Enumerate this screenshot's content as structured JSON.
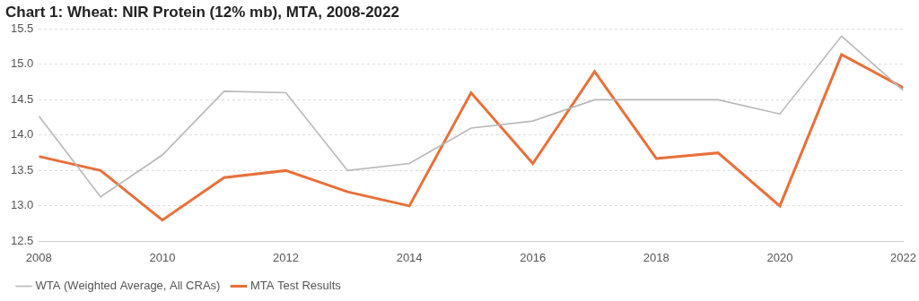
{
  "chart_data": {
    "type": "line",
    "title": "Chart 1: Wheat: NIR Protein (12% mb), MTA, 2008-2022",
    "x": [
      2008,
      2009,
      2010,
      2011,
      2012,
      2013,
      2014,
      2015,
      2016,
      2017,
      2018,
      2019,
      2020,
      2021,
      2022
    ],
    "series": [
      {
        "name": "MTA Test Results",
        "color": "#e8703a",
        "marker": "none",
        "line_style": "solid",
        "values": [
          13.7,
          13.5,
          12.8,
          13.4,
          13.5,
          13.2,
          13.0,
          14.6,
          13.6,
          14.9,
          13.67,
          13.75,
          13.0,
          15.14,
          14.67
        ]
      },
      {
        "name": "WTA (Weighted Average, All CRAs)",
        "color": "#b8b8b8",
        "marker": "none",
        "line_style": "solid",
        "values": [
          14.27,
          13.13,
          13.72,
          14.62,
          14.6,
          13.5,
          13.6,
          14.1,
          14.2,
          14.5,
          14.5,
          14.5,
          14.3,
          15.4,
          14.63
        ]
      }
    ],
    "xlim": [
      2008,
      2022
    ],
    "xticks": [
      2008,
      2010,
      2012,
      2014,
      2016,
      2018,
      2020,
      2022
    ],
    "ylim": [
      12.5,
      15.5
    ],
    "yticks": [
      12.5,
      {
        "value": 13,
        "label": "13.0"
      },
      13.5,
      {
        "value": 14,
        "label": "14.0"
      },
      14.5,
      {
        "value": 15,
        "label": "15.0"
      },
      15.5
    ],
    "grid": true,
    "legend": "lower left"
  }
}
